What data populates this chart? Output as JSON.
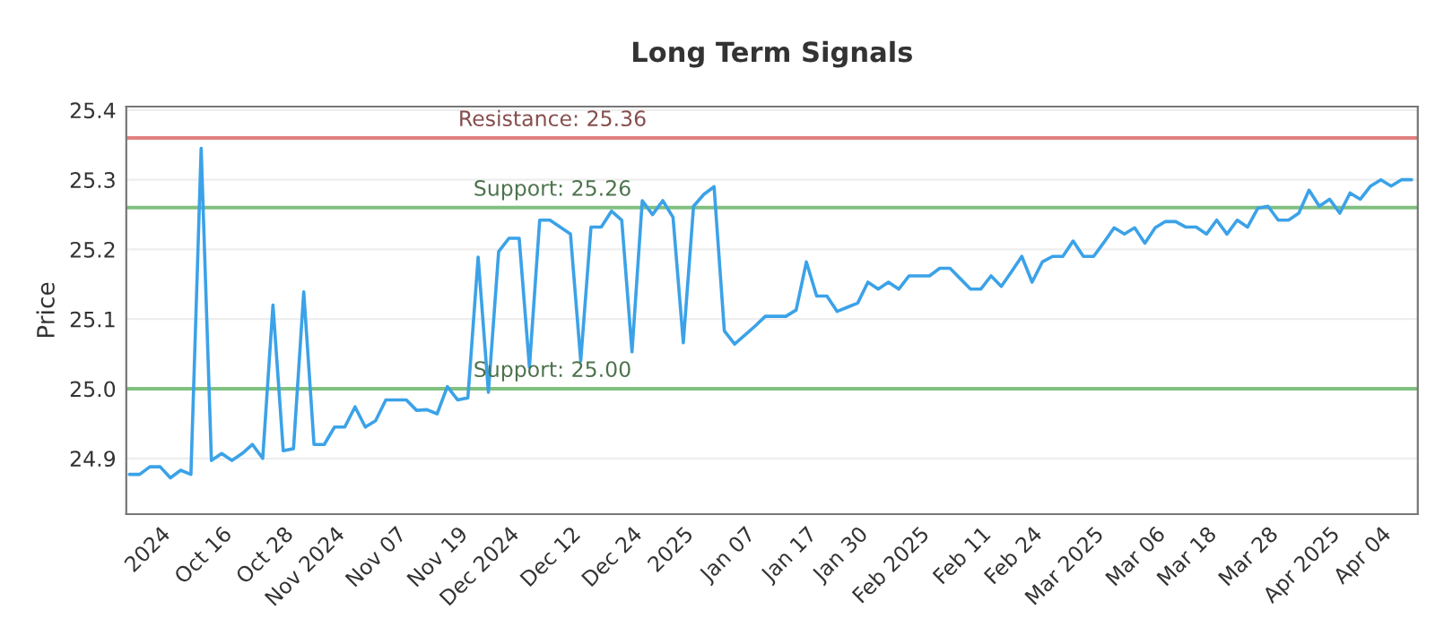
{
  "chart_data": {
    "type": "line",
    "title": "Long Term Signals",
    "ylabel": "Price",
    "categories": [
      null,
      null,
      null,
      "2024",
      null,
      null,
      null,
      null,
      null,
      "Oct 16",
      null,
      null,
      null,
      null,
      null,
      "Oct 28",
      null,
      null,
      null,
      null,
      "Nov 2024",
      null,
      null,
      null,
      null,
      null,
      "Nov 07",
      null,
      null,
      null,
      null,
      null,
      "Nov 19",
      null,
      null,
      null,
      null,
      "Dec 2024",
      null,
      null,
      null,
      null,
      null,
      "Dec 12",
      null,
      null,
      null,
      null,
      null,
      "Dec 24",
      null,
      null,
      null,
      null,
      "2025",
      null,
      null,
      null,
      null,
      null,
      "Jan 07",
      null,
      null,
      null,
      null,
      null,
      "Jan 17",
      null,
      null,
      null,
      null,
      "Jan 30",
      null,
      null,
      null,
      null,
      null,
      "Feb 2025",
      null,
      null,
      null,
      null,
      null,
      "Feb 11",
      null,
      null,
      null,
      null,
      "Feb 24",
      null,
      null,
      null,
      null,
      null,
      "Mar 2025",
      null,
      null,
      null,
      null,
      null,
      "Mar 06",
      null,
      null,
      null,
      null,
      "Mar 18",
      null,
      null,
      null,
      null,
      null,
      "Mar 28",
      null,
      null,
      null,
      null,
      null,
      "Apr 2025",
      null,
      null,
      null,
      null,
      "Apr 04",
      null,
      null,
      null
    ],
    "series": [
      {
        "color": "#3ba2e8",
        "values": [
          24.877,
          24.877,
          24.888,
          24.888,
          24.872,
          24.883,
          24.877,
          25.345,
          24.897,
          24.907,
          24.897,
          24.907,
          24.92,
          24.9,
          25.12,
          24.911,
          24.914,
          25.139,
          24.92,
          24.92,
          24.945,
          24.945,
          24.974,
          24.945,
          24.954,
          24.984,
          24.984,
          24.984,
          24.969,
          24.97,
          24.964,
          25.003,
          24.984,
          24.987,
          25.189,
          24.995,
          25.197,
          25.216,
          25.216,
          25.031,
          25.242,
          25.242,
          25.232,
          25.222,
          25.04,
          25.232,
          25.232,
          25.255,
          25.242,
          25.053,
          25.27,
          25.25,
          25.27,
          25.246,
          25.066,
          25.262,
          25.279,
          25.29,
          25.083,
          25.064,
          25.077,
          25.09,
          25.104,
          25.104,
          25.104,
          25.113,
          25.182,
          25.133,
          25.133,
          25.111,
          25.117,
          25.123,
          25.153,
          25.143,
          25.153,
          25.143,
          25.162,
          25.162,
          25.162,
          25.173,
          25.173,
          25.158,
          25.143,
          25.143,
          25.162,
          25.147,
          25.168,
          25.19,
          25.153,
          25.182,
          25.19,
          25.19,
          25.212,
          25.19,
          25.19,
          25.21,
          25.231,
          25.222,
          25.231,
          25.209,
          25.231,
          25.24,
          25.24,
          25.232,
          25.232,
          25.222,
          25.242,
          25.222,
          25.242,
          25.232,
          25.259,
          25.262,
          25.242,
          25.242,
          25.252,
          25.285,
          25.262,
          25.272,
          25.252,
          25.281,
          25.272,
          25.291,
          25.3,
          25.291,
          25.3,
          25.3
        ]
      }
    ],
    "ylim": [
      24.82,
      25.405
    ],
    "yticks": [
      {
        "value": 24.9,
        "label": "24.9"
      },
      {
        "value": 25.0,
        "label": "25.0"
      },
      {
        "value": 25.1,
        "label": "25.1"
      },
      {
        "value": 25.2,
        "label": "25.2"
      },
      {
        "value": 25.3,
        "label": "25.3"
      },
      {
        "value": 25.4,
        "label": "25.4"
      }
    ],
    "ref_lines": [
      {
        "axis": "y",
        "value": 25.36,
        "label": "Resistance: 25.36",
        "color": "#e08080"
      },
      {
        "axis": "y",
        "value": 25.26,
        "label": "Support: 25.26",
        "color": "#80c080"
      },
      {
        "axis": "y",
        "value": 25.0,
        "label": "Support: 25.00",
        "color": "#80c080"
      }
    ],
    "grid": "y",
    "legend": false,
    "marker": "none",
    "line_style": "solid"
  }
}
